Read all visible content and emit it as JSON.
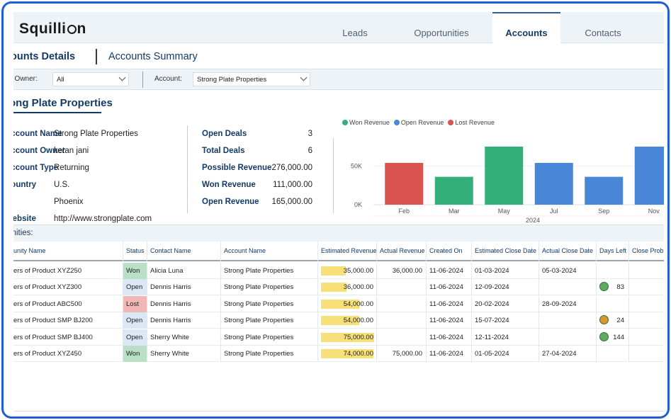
{
  "app": {
    "logo_pre": "Squilli",
    "logo_post": "n"
  },
  "tabs": [
    {
      "label": "Leads"
    },
    {
      "label": "Opportunities"
    },
    {
      "label": "Accounts",
      "active": true
    },
    {
      "label": "Contacts"
    }
  ],
  "subheader": {
    "details_label": "ounts Details",
    "summary_label": "Accounts Summary"
  },
  "filters": {
    "owner_label": "t Owner:",
    "owner_value": "All",
    "account_label": "Account:",
    "account_value": "Strong Plate Properties"
  },
  "account": {
    "title": "ong Plate Properties",
    "details": [
      {
        "key": "Account Name",
        "value": "Strong Plate Properties"
      },
      {
        "key": "Account Owner",
        "value": "ketan jani"
      },
      {
        "key": "Account Type",
        "value": "Returning"
      },
      {
        "key": "Country",
        "value": "U.S."
      },
      {
        "key": "",
        "value": "Phoenix"
      },
      {
        "key": "Website",
        "value": "http://www.strongplate.com"
      }
    ],
    "stats": [
      {
        "key": "Open Deals",
        "value": "3"
      },
      {
        "key": "Total Deals",
        "value": "6"
      },
      {
        "key": "Possible Revenue",
        "value": "276,000.00"
      },
      {
        "key": "Won Revenue",
        "value": "111,000.00"
      },
      {
        "key": "Open Revenue",
        "value": "165,000.00"
      }
    ]
  },
  "chart_data": {
    "type": "bar",
    "legend": [
      {
        "name": "Won Revenue",
        "color": "#33b07a"
      },
      {
        "name": "Open Revenue",
        "color": "#4a86d8"
      },
      {
        "name": "Lost Revenue",
        "color": "#d9534f"
      }
    ],
    "categories": [
      "Feb",
      "Mar",
      "May",
      "Jul",
      "Sep",
      "Nov"
    ],
    "values": [
      54000,
      36000,
      75000,
      54000,
      36000,
      75000
    ],
    "bar_series": [
      "Lost Revenue",
      "Won Revenue",
      "Won Revenue",
      "Open Revenue",
      "Open Revenue",
      "Open Revenue"
    ],
    "yticks": [
      "0K",
      "50K"
    ],
    "ylim": [
      0,
      75000
    ],
    "xlabel": "2024"
  },
  "opportunities": {
    "title": "tunities:",
    "columns": [
      "unity Name",
      "Status",
      "Contact Name",
      "Account Name",
      "Estimated Revenue",
      "Actual Revenue",
      "Created On",
      "Estimated Close Date",
      "Actual Close Date",
      "Days Left",
      "Close Proba"
    ],
    "rows": [
      {
        "name": "ers of Product XYZ250",
        "status": "Won",
        "contact": "Alicia Luna",
        "account": "Strong Plate Properties",
        "est": "35,000.00",
        "est_value": 35000,
        "actual": "36,000.00",
        "created": "11-06-2024",
        "est_close": "01-03-2024",
        "actual_close": "05-03-2024",
        "days": "",
        "days_color": ""
      },
      {
        "name": "ers of Product XYZ300",
        "status": "Open",
        "contact": "Dennis Harris",
        "account": "Strong Plate Properties",
        "est": "36,000.00",
        "est_value": 36000,
        "actual": "",
        "created": "11-06-2024",
        "est_close": "12-09-2024",
        "actual_close": "",
        "days": "83",
        "days_color": "#5aad5e"
      },
      {
        "name": "ers of Product ABC500",
        "status": "Lost",
        "contact": "Dennis Harris",
        "account": "Strong Plate Properties",
        "est": "54,000.00",
        "est_value": 54000,
        "actual": "",
        "created": "11-06-2024",
        "est_close": "20-02-2024",
        "actual_close": "28-09-2024",
        "days": "",
        "days_color": ""
      },
      {
        "name": "ers of Product SMP BJ200",
        "status": "Open",
        "contact": "Dennis Harris",
        "account": "Strong Plate Properties",
        "est": "54,000.00",
        "est_value": 54000,
        "actual": "",
        "created": "11-06-2024",
        "est_close": "15-07-2024",
        "actual_close": "",
        "days": "24",
        "days_color": "#d9962a"
      },
      {
        "name": "ers of Product SMP BJ400",
        "status": "Open",
        "contact": "Sherry White",
        "account": "Strong Plate Properties",
        "est": "75,000.00",
        "est_value": 75000,
        "actual": "",
        "created": "11-06-2024",
        "est_close": "12-11-2024",
        "actual_close": "",
        "days": "144",
        "days_color": "#5aad5e"
      },
      {
        "name": "ers of Product XYZ450",
        "status": "Won",
        "contact": "Sherry White",
        "account": "Strong Plate Properties",
        "est": "74,000.00",
        "est_value": 74000,
        "actual": "75,000.00",
        "created": "11-06-2024",
        "est_close": "01-05-2024",
        "actual_close": "27-04-2024",
        "days": "",
        "days_color": ""
      }
    ]
  }
}
